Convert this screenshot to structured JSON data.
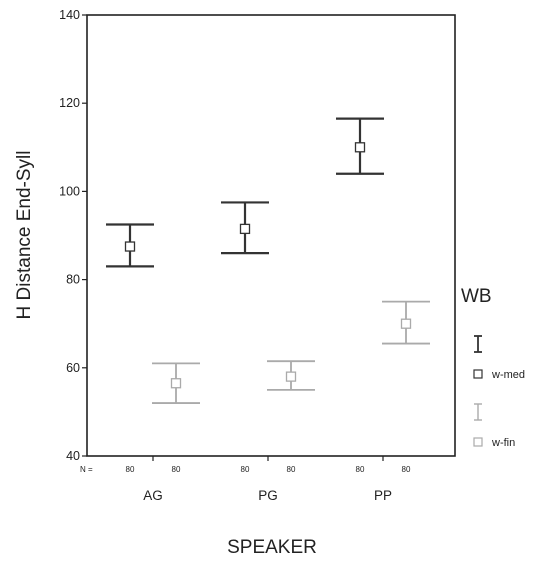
{
  "chart_data": {
    "type": "errorbar",
    "xlabel": "SPEAKER",
    "ylabel": "H Distance End-Syll",
    "ylim": [
      40,
      140
    ],
    "yticks": [
      40,
      60,
      80,
      100,
      120,
      140
    ],
    "categories": [
      "AG",
      "PG",
      "PP"
    ],
    "n_label": "N =",
    "legend_title": "WB",
    "grid": false,
    "legend_position": "right",
    "series": [
      {
        "name": "w-med",
        "color": "#333333",
        "n": [
          "80",
          "80",
          "80"
        ],
        "mean": [
          87.5,
          91.5,
          110
        ],
        "lower": [
          83,
          86,
          104
        ],
        "upper": [
          92.5,
          97.5,
          116.5
        ]
      },
      {
        "name": "w-fin",
        "color": "#aaaaaa",
        "n": [
          "80",
          "80",
          "80"
        ],
        "mean": [
          56.5,
          58,
          70
        ],
        "lower": [
          52,
          55,
          65.5
        ],
        "upper": [
          61,
          61.5,
          75
        ]
      }
    ]
  }
}
